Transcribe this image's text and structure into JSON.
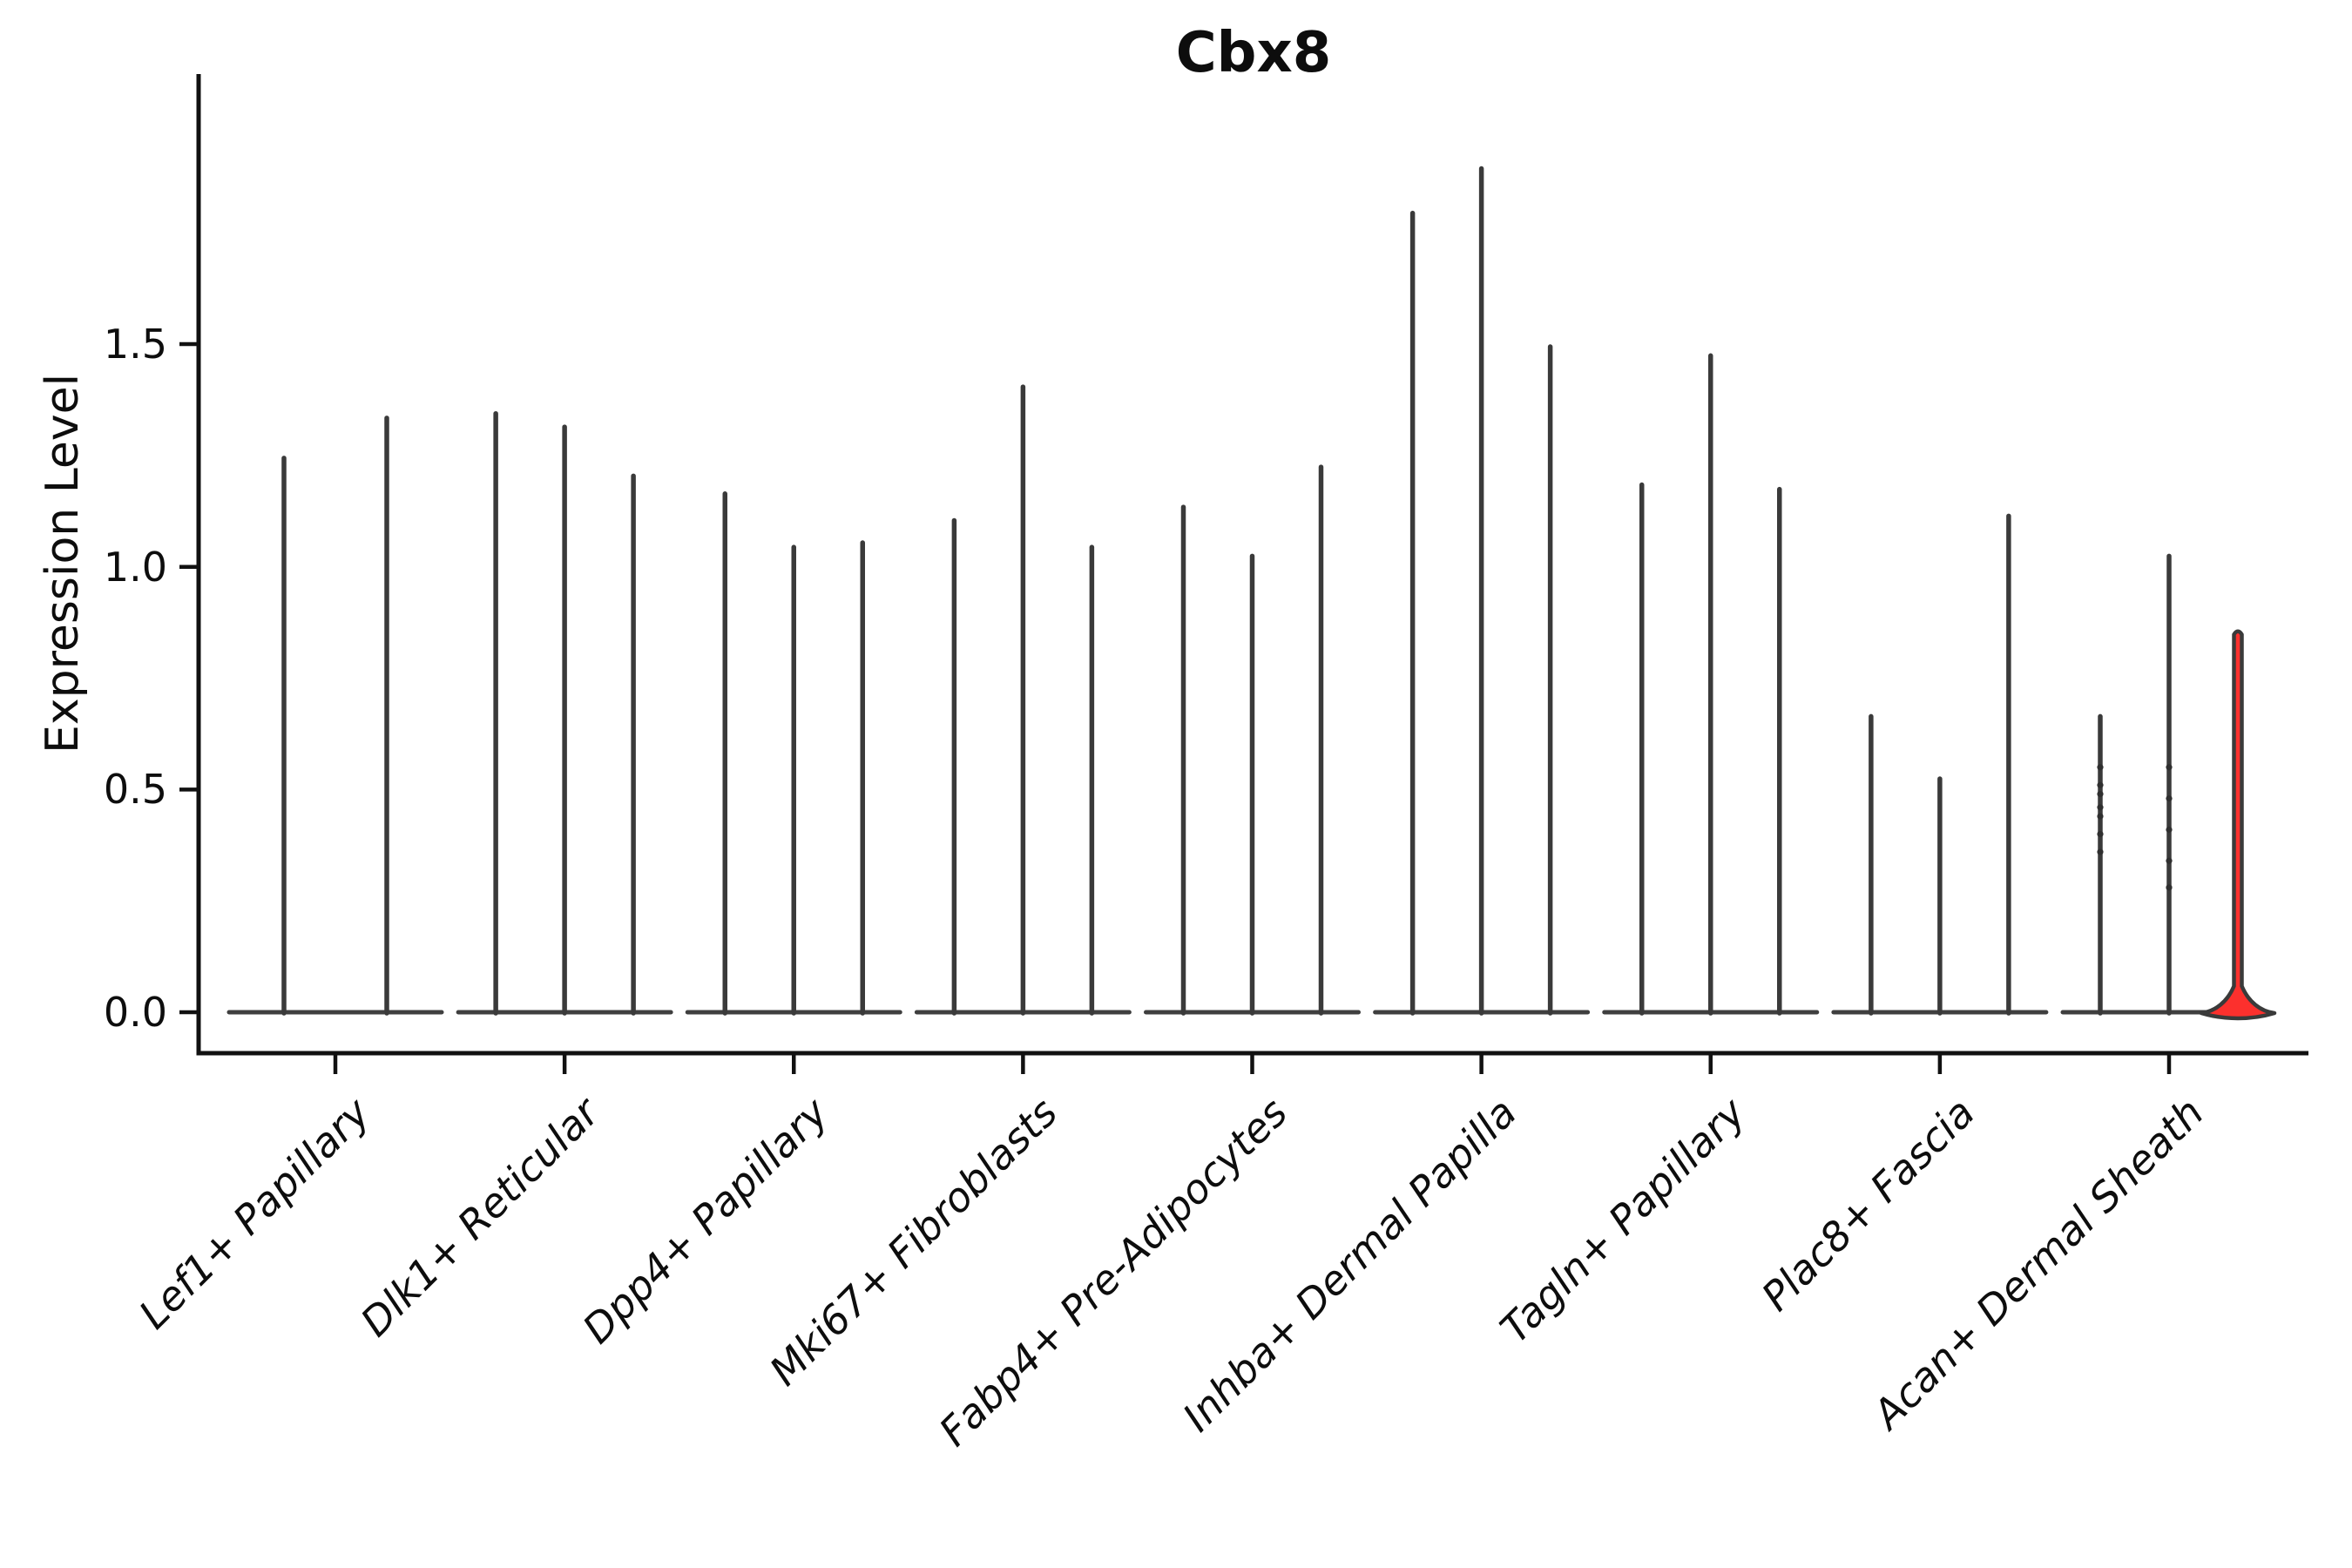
{
  "chart_data": {
    "type": "violin",
    "title": "Cbx8",
    "ylabel": "Expression Level",
    "yticks": [
      0.0,
      0.5,
      1.0,
      1.5
    ],
    "ytick_labels": [
      "0.0",
      "0.5",
      "1.0",
      "1.5"
    ],
    "ylim": [
      -0.09,
      2.11
    ],
    "grid": false,
    "legend": "none",
    "categories": [
      "Lef1+ Papillary",
      "Dlk1+ Reticular",
      "Dpp4+ Papillary",
      "Mki67+ Fibroblasts",
      "Fabp4+ Pre-Adipocytes",
      "Inhba+ Dermal Papilla",
      "Tagln+ Papillary",
      "Plac8+ Fascia",
      "Acan+ Dermal Sheath"
    ],
    "groups": [
      {
        "category": "Lef1+ Papillary",
        "violin_max": [
          1.25,
          1.34
        ],
        "highlight": [
          false,
          false
        ]
      },
      {
        "category": "Dlk1+ Reticular",
        "violin_max": [
          1.35,
          1.32,
          1.21
        ],
        "highlight": [
          false,
          false,
          false
        ]
      },
      {
        "category": "Dpp4+ Papillary",
        "violin_max": [
          1.17,
          1.05,
          1.06
        ],
        "highlight": [
          false,
          false,
          false
        ]
      },
      {
        "category": "Mki67+ Fibroblasts",
        "violin_max": [
          1.11,
          1.41,
          1.05
        ],
        "highlight": [
          false,
          false,
          false
        ]
      },
      {
        "category": "Fabp4+ Pre-Adipocytes",
        "violin_max": [
          1.14,
          1.03,
          1.23
        ],
        "highlight": [
          false,
          false,
          false
        ]
      },
      {
        "category": "Inhba+ Dermal Papilla",
        "violin_max": [
          1.8,
          1.9,
          1.5
        ],
        "highlight": [
          false,
          false,
          false
        ]
      },
      {
        "category": "Tagln+ Papillary",
        "violin_max": [
          1.19,
          1.48,
          1.18
        ],
        "highlight": [
          false,
          false,
          false
        ]
      },
      {
        "category": "Plac8+ Fascia",
        "violin_max": [
          0.67,
          0.53,
          1.12
        ],
        "highlight": [
          false,
          false,
          false
        ]
      },
      {
        "category": "Acan+ Dermal Sheath",
        "violin_max": [
          0.67,
          1.03,
          0.86
        ],
        "highlight": [
          false,
          false,
          true
        ]
      }
    ],
    "jitter_marks": [
      {
        "group": 8,
        "violin": 0,
        "values": [
          0.55,
          0.51,
          0.49,
          0.46,
          0.44,
          0.4,
          0.36
        ]
      },
      {
        "group": 8,
        "violin": 1,
        "values": [
          0.55,
          0.48,
          0.41,
          0.34,
          0.28
        ]
      }
    ],
    "colors": {
      "violin_stroke": "#3a3a3a",
      "violin_base": "#3f3f3f",
      "highlight_fill": "#fc302d",
      "axis": "#111111",
      "text": "#0d0d0d"
    }
  }
}
